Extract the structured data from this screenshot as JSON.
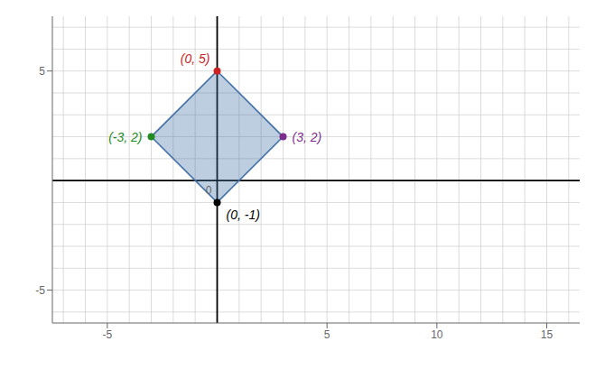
{
  "chart_data": {
    "type": "scatter",
    "xlim": [
      -7.5,
      16.5
    ],
    "ylim": [
      -6.5,
      7.5
    ],
    "xticks": [
      -5,
      5,
      10,
      15
    ],
    "yticks": [
      -5,
      5
    ],
    "grid": true,
    "series": [
      {
        "type": "polygon",
        "color": "#4472A8",
        "x": [
          0,
          3,
          0,
          -3
        ],
        "y": [
          5,
          2,
          -1,
          2
        ]
      },
      {
        "type": "scatter",
        "marker": "circle",
        "x": [
          3,
          0,
          -3,
          0
        ],
        "y": [
          2,
          5,
          2,
          -1
        ],
        "colors": [
          "#7B2D8B",
          "#CC2222",
          "#228B22",
          "#000000"
        ],
        "data_labels": true,
        "value_labels": [
          "(3, 2)",
          "(0, 5)",
          "(-3, 2)",
          "(0, -1)"
        ]
      }
    ],
    "annotations": [
      {
        "text": "0",
        "x": 0,
        "y": 0
      }
    ]
  }
}
